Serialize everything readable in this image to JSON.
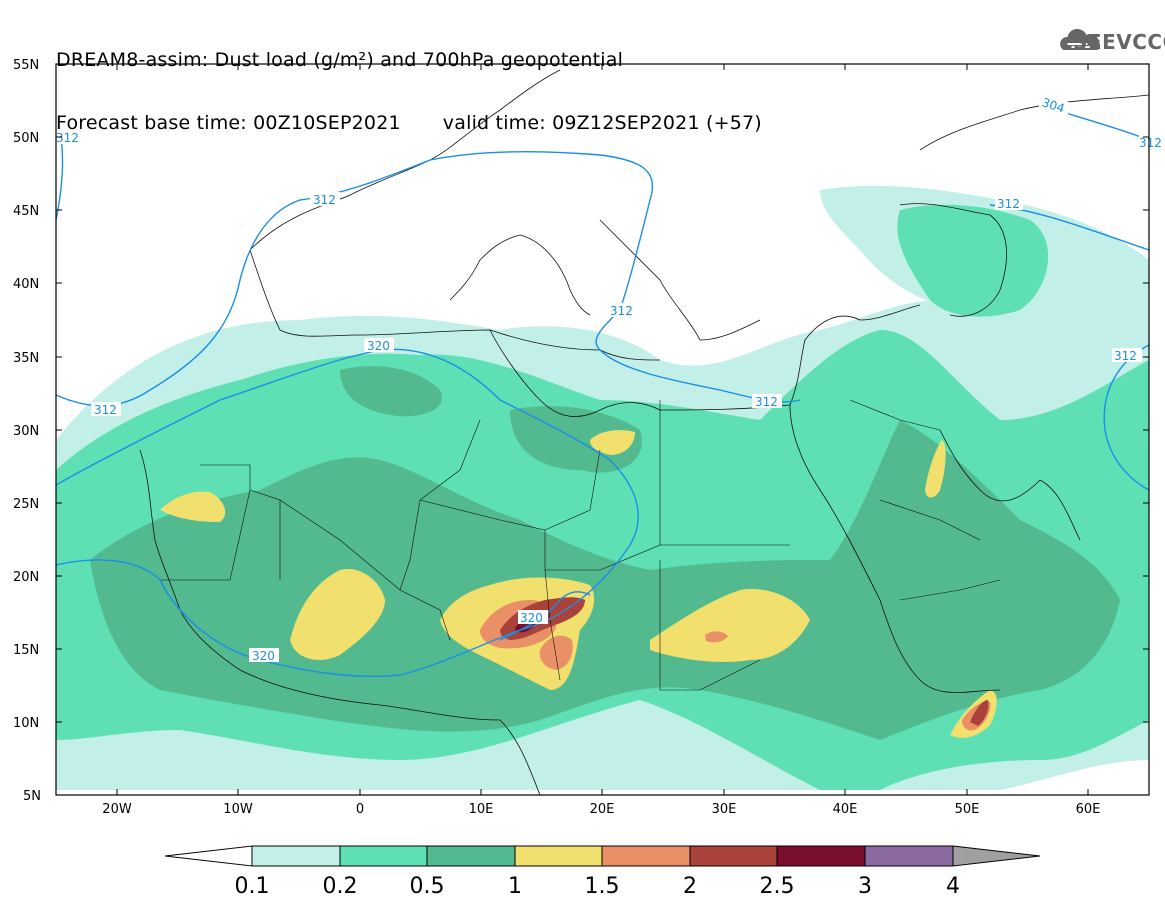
{
  "header": {
    "line1": "DREAM8-assim: Dust load (g/m²) and 700hPa geopotential",
    "line2_base": "Forecast base time: 00Z10SEP2021",
    "line2_valid": "valid time: 09Z12SEP2021 (+57)"
  },
  "logo": {
    "text": "SEEVCCC",
    "icon": "cloud-icon"
  },
  "map": {
    "lat_labels": [
      "55N",
      "50N",
      "45N",
      "40N",
      "35N",
      "30N",
      "25N",
      "20N",
      "15N",
      "10N",
      "5N"
    ],
    "lon_labels": [
      "20W",
      "10W",
      "0",
      "10E",
      "20E",
      "30E",
      "40E",
      "50E",
      "60E"
    ],
    "contour_labels": [
      "312",
      "312",
      "312",
      "304",
      "312",
      "320",
      "312",
      "312",
      "312",
      "320",
      "320",
      "312"
    ]
  },
  "colorbar": {
    "labels": [
      "0.1",
      "0.2",
      "0.5",
      "1",
      "1.5",
      "2",
      "2.5",
      "3",
      "4"
    ],
    "colors": [
      "#c2efe8",
      "#5ee0b4",
      "#53b98f",
      "#f2e06e",
      "#ea9066",
      "#a8423a",
      "#7a0f2c",
      "#8a6aa0",
      "#a0a0a0"
    ]
  }
}
